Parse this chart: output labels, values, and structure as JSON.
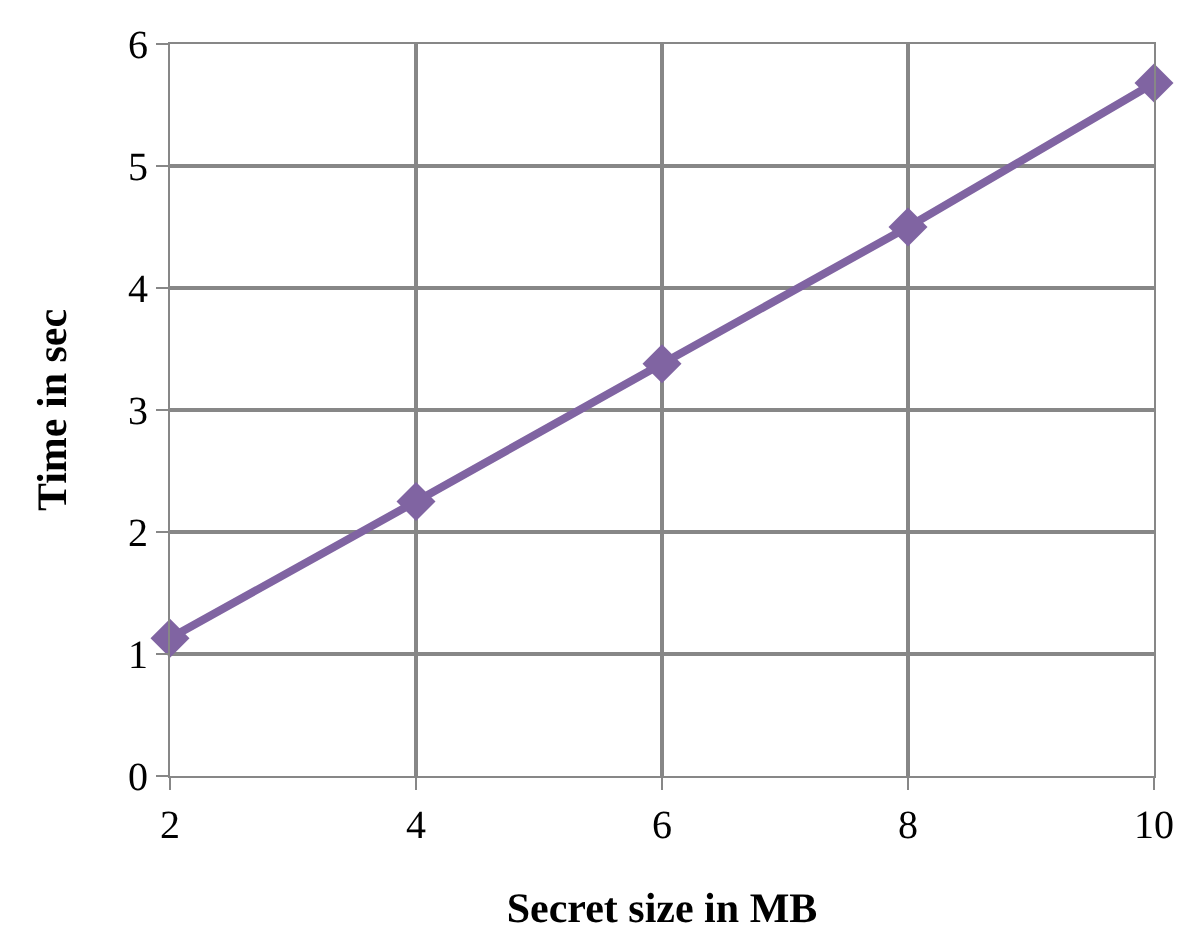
{
  "chart_data": {
    "type": "line",
    "xlabel": "Secret size in MB",
    "ylabel": "Time in sec",
    "x": [
      2,
      4,
      6,
      8,
      10
    ],
    "series": [
      {
        "color": "#8064a2",
        "values": [
          1.13,
          2.25,
          3.38,
          4.5,
          5.68
        ]
      }
    ],
    "xlim": [
      2,
      10
    ],
    "xticks": [
      2,
      4,
      6,
      8,
      10
    ],
    "ylim": [
      0,
      6
    ],
    "yticks": [
      0,
      1,
      2,
      3,
      4,
      5,
      6
    ],
    "grid": true,
    "marker": "diamond",
    "line_style": "solid"
  }
}
